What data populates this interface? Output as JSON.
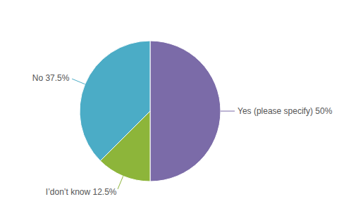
{
  "chart_data": {
    "type": "pie",
    "categories": [
      "Yes (please specify) 50%",
      "I’don’t know 12.5%",
      "No 37.5%"
    ],
    "values": [
      50.0,
      12.5,
      37.5
    ],
    "colors": [
      "#7b6ba8",
      "#8db53a",
      "#4bacc6"
    ]
  }
}
